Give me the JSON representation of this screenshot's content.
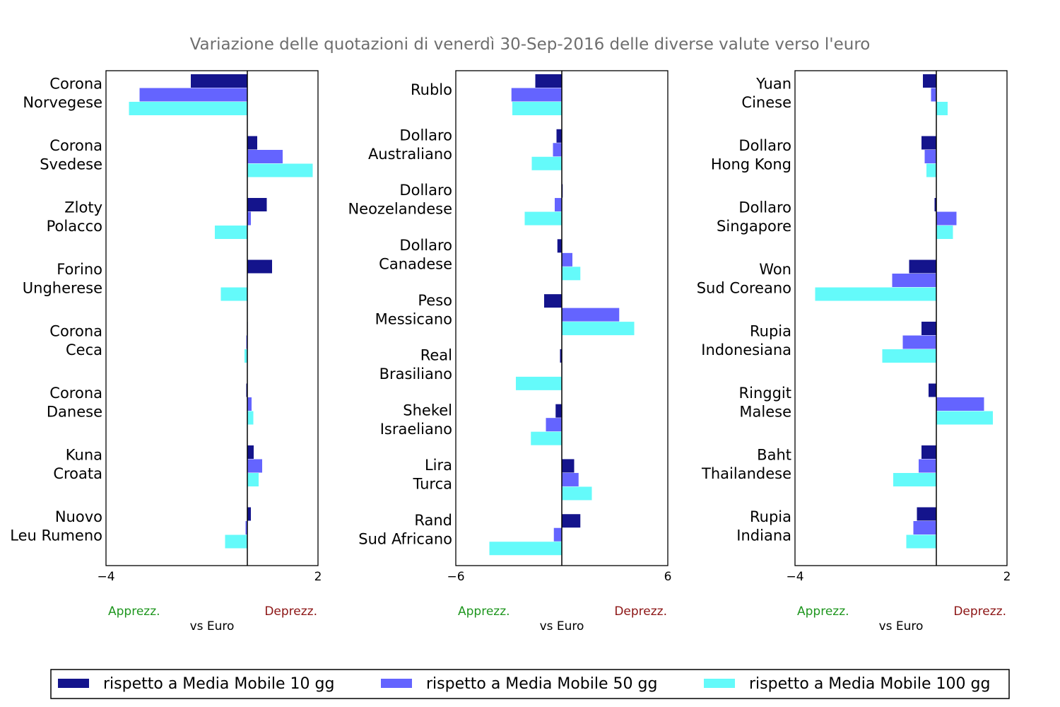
{
  "title": "Variazione delle quotazioni di venerdì 30-Sep-2016 delle diverse valute verso l'euro",
  "colors": {
    "ma10": "#14148c",
    "ma50": "#6464ff",
    "ma100": "#64fafa",
    "apprezz": "#1e961e",
    "deprezz": "#8c1414",
    "frame": "#000000"
  },
  "axis_notes": {
    "apprezz": "Apprezz.",
    "deprezz": "Deprezz.",
    "xlabel": "vs Euro"
  },
  "legend": [
    {
      "key": "ma10",
      "label": "rispetto a Media Mobile 10 gg"
    },
    {
      "key": "ma50",
      "label": "rispetto a Media Mobile 50 gg"
    },
    {
      "key": "ma100",
      "label": "rispetto a Media Mobile 100 gg"
    }
  ],
  "chart_data": [
    {
      "type": "bar",
      "orientation": "horizontal",
      "xlim": [
        -4,
        2
      ],
      "xticks": [
        "−4",
        "2"
      ],
      "xlabel": "vs Euro",
      "categories": [
        [
          "Corona",
          "Norvegese"
        ],
        [
          "Corona",
          "Svedese"
        ],
        [
          "Zloty",
          "Polacco"
        ],
        [
          "Forino",
          "Ungherese"
        ],
        [
          "Corona",
          "Ceca"
        ],
        [
          "Corona",
          "Danese"
        ],
        [
          "Kuna",
          "Croata"
        ],
        [
          "Nuovo",
          "Leu Rumeno"
        ]
      ],
      "series": [
        {
          "name": "rispetto a Media Mobile 10 gg",
          "key": "ma10",
          "values": [
            -1.6,
            0.28,
            0.55,
            0.7,
            0.0,
            -0.03,
            0.18,
            0.1
          ]
        },
        {
          "name": "rispetto a Media Mobile 50 gg",
          "key": "ma50",
          "values": [
            -3.05,
            1.0,
            0.1,
            0.0,
            -0.03,
            0.12,
            0.42,
            -0.05
          ]
        },
        {
          "name": "rispetto a Media Mobile 100 gg",
          "key": "ma100",
          "values": [
            -3.35,
            1.85,
            -0.92,
            -0.75,
            -0.08,
            0.17,
            0.32,
            -0.63
          ]
        }
      ]
    },
    {
      "type": "bar",
      "orientation": "horizontal",
      "xlim": [
        -6,
        6
      ],
      "xticks": [
        "−6",
        "6"
      ],
      "xlabel": "vs Euro",
      "categories": [
        [
          "Rublo"
        ],
        [
          "Dollaro",
          "Australiano"
        ],
        [
          "Dollaro",
          "Neozelandese"
        ],
        [
          "Dollaro",
          "Canadese"
        ],
        [
          "Peso",
          "Messicano"
        ],
        [
          "Real",
          "Brasiliano"
        ],
        [
          "Shekel",
          "Israeliano"
        ],
        [
          "Lira",
          "Turca"
        ],
        [
          "Rand",
          "Sud Africano"
        ]
      ],
      "series": [
        {
          "name": "rispetto a Media Mobile 10 gg",
          "key": "ma10",
          "values": [
            -1.5,
            -0.3,
            0.05,
            -0.25,
            -1.0,
            -0.1,
            -0.35,
            0.7,
            1.05
          ]
        },
        {
          "name": "rispetto a Media Mobile 50 gg",
          "key": "ma50",
          "values": [
            -2.85,
            -0.5,
            -0.4,
            0.6,
            3.25,
            0.0,
            -0.9,
            0.95,
            -0.45
          ]
        },
        {
          "name": "rispetto a Media Mobile 100 gg",
          "key": "ma100",
          "values": [
            -2.8,
            -1.7,
            -2.1,
            1.05,
            4.1,
            -2.6,
            -1.75,
            1.7,
            -4.1
          ]
        }
      ]
    },
    {
      "type": "bar",
      "orientation": "horizontal",
      "xlim": [
        -4,
        2
      ],
      "xticks": [
        "−4",
        "2"
      ],
      "xlabel": "vs Euro",
      "categories": [
        [
          "Yuan",
          "Cinese"
        ],
        [
          "Dollaro",
          "Hong Kong"
        ],
        [
          "Dollaro",
          "Singapore"
        ],
        [
          "Won",
          "Sud Coreano"
        ],
        [
          "Rupia",
          "Indonesiana"
        ],
        [
          "Ringgit",
          "Malese"
        ],
        [
          "Baht",
          "Thailandese"
        ],
        [
          "Rupia",
          "Indiana"
        ]
      ],
      "series": [
        {
          "name": "rispetto a Media Mobile 10 gg",
          "key": "ma10",
          "values": [
            -0.38,
            -0.42,
            -0.05,
            -0.77,
            -0.42,
            -0.22,
            -0.42,
            -0.55
          ]
        },
        {
          "name": "rispetto a Media Mobile 50 gg",
          "key": "ma50",
          "values": [
            -0.15,
            -0.33,
            0.57,
            -1.25,
            -0.95,
            1.35,
            -0.5,
            -0.65
          ]
        },
        {
          "name": "rispetto a Media Mobile 100 gg",
          "key": "ma100",
          "values": [
            0.32,
            -0.28,
            0.47,
            -3.43,
            -1.53,
            1.6,
            -1.22,
            -0.85
          ]
        }
      ]
    }
  ]
}
